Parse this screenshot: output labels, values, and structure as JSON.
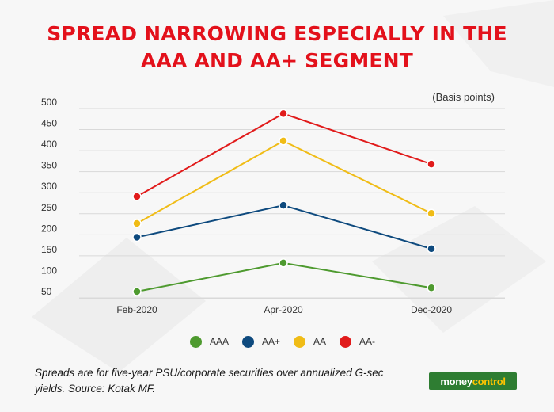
{
  "title_lines": [
    "SPREAD NARROWING ESPECIALLY IN THE",
    "AAA AND AA+ SEGMENT"
  ],
  "unit_label": "(Basis points)",
  "footnote": "Spreads are for five-year PSU/corporate securities over annualized G-sec yields. Source: Kotak MF.",
  "brand": {
    "part1": "money",
    "part2": "control"
  },
  "colors": {
    "title": "#e3111b",
    "AAA": "#4e9a2f",
    "AA+": "#0e4a7e",
    "AA": "#f0bc16",
    "AA-": "#e11b1b"
  },
  "chart_data": {
    "type": "line",
    "categories": [
      "Feb-2020",
      "Apr-2020",
      "Dec-2020"
    ],
    "yticks": [
      "500",
      "450",
      "400",
      "350",
      "300",
      "250",
      "200",
      "150",
      "100",
      "50"
    ],
    "ylim": [
      50,
      500
    ],
    "grid": true,
    "legend_position": "bottom",
    "series": [
      {
        "name": "AAA",
        "values": [
          65,
          133,
          74
        ]
      },
      {
        "name": "AA+",
        "values": [
          194,
          270,
          167
        ]
      },
      {
        "name": "AA",
        "values": [
          227,
          423,
          251
        ]
      },
      {
        "name": "AA-",
        "values": [
          291,
          488,
          368
        ]
      }
    ]
  }
}
